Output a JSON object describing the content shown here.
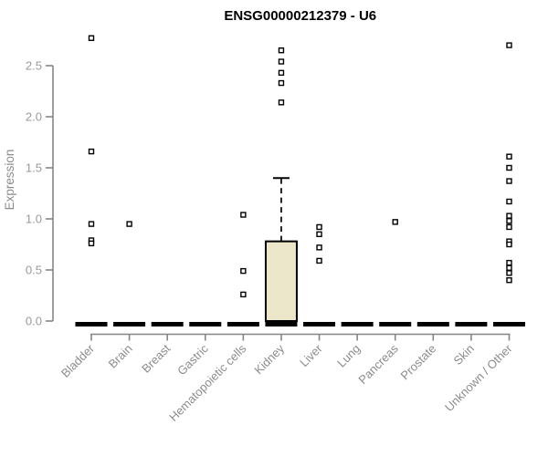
{
  "title": "ENSG00000212379 - U6",
  "chart_data": {
    "type": "boxplot",
    "title": "ENSG00000212379 - U6",
    "xlabel": "",
    "ylabel": "Expression",
    "ylim": [
      0,
      2.85
    ],
    "yticks": [
      0,
      0.5,
      1,
      1.5,
      2,
      2.5
    ],
    "ytick_labels": [
      "0.0",
      "0.5",
      "1.0",
      "1.5",
      "2.0",
      "2.5"
    ],
    "grid": false,
    "legend": false,
    "categories": [
      "Bladder",
      "Brain",
      "Breast",
      "Gastric",
      "Hematopoietic cells",
      "Kidney",
      "Liver",
      "Lung",
      "Pancreas",
      "Prostate",
      "Skin",
      "Unknown / Other"
    ],
    "series": [
      {
        "category": "Bladder",
        "q1": 0,
        "median": 0,
        "q3": 0,
        "whisker_low": 0,
        "whisker_high": 0,
        "outliers": [
          2.77,
          1.66,
          0.95,
          0.79,
          0.76
        ]
      },
      {
        "category": "Brain",
        "q1": 0,
        "median": 0,
        "q3": 0,
        "whisker_low": 0,
        "whisker_high": 0,
        "outliers": [
          0.95
        ]
      },
      {
        "category": "Breast",
        "q1": 0,
        "median": 0,
        "q3": 0,
        "whisker_low": 0,
        "whisker_high": 0,
        "outliers": []
      },
      {
        "category": "Gastric",
        "q1": 0,
        "median": 0,
        "q3": 0,
        "whisker_low": 0,
        "whisker_high": 0,
        "outliers": []
      },
      {
        "category": "Hematopoietic cells",
        "q1": 0,
        "median": 0,
        "q3": 0,
        "whisker_low": 0,
        "whisker_high": 0,
        "outliers": [
          1.04,
          0.49,
          0.26
        ]
      },
      {
        "category": "Kidney",
        "q1": 0,
        "median": 0,
        "q3": 0.78,
        "whisker_low": 0,
        "whisker_high": 1.4,
        "outliers": [
          2.65,
          2.54,
          2.43,
          2.33,
          2.14
        ]
      },
      {
        "category": "Liver",
        "q1": 0,
        "median": 0,
        "q3": 0,
        "whisker_low": 0,
        "whisker_high": 0,
        "outliers": [
          0.92,
          0.85,
          0.72,
          0.59
        ]
      },
      {
        "category": "Lung",
        "q1": 0,
        "median": 0,
        "q3": 0,
        "whisker_low": 0,
        "whisker_high": 0,
        "outliers": []
      },
      {
        "category": "Pancreas",
        "q1": 0,
        "median": 0,
        "q3": 0,
        "whisker_low": 0,
        "whisker_high": 0,
        "outliers": [
          0.97
        ]
      },
      {
        "category": "Prostate",
        "q1": 0,
        "median": 0,
        "q3": 0,
        "whisker_low": 0,
        "whisker_high": 0,
        "outliers": []
      },
      {
        "category": "Skin",
        "q1": 0,
        "median": 0,
        "q3": 0,
        "whisker_low": 0,
        "whisker_high": 0,
        "outliers": []
      },
      {
        "category": "Unknown / Other",
        "q1": 0,
        "median": 0,
        "q3": 0,
        "whisker_low": 0,
        "whisker_high": 0,
        "outliers": [
          2.7,
          1.61,
          1.5,
          1.37,
          1.17,
          1.03,
          0.98,
          0.92,
          0.78,
          0.75,
          0.57,
          0.52,
          0.47,
          0.4
        ]
      }
    ],
    "colors": {
      "box_fill": "#ece7cb",
      "box_border": "#000000",
      "zero_bar": "#000000",
      "whisker": "#000000",
      "axis": "#858585",
      "tick_label": "#9a9a9a",
      "category_label": "#8c8c8c",
      "title": "#000000",
      "outlier_stroke": "#000000",
      "outlier_fill": "#ffffff"
    }
  }
}
